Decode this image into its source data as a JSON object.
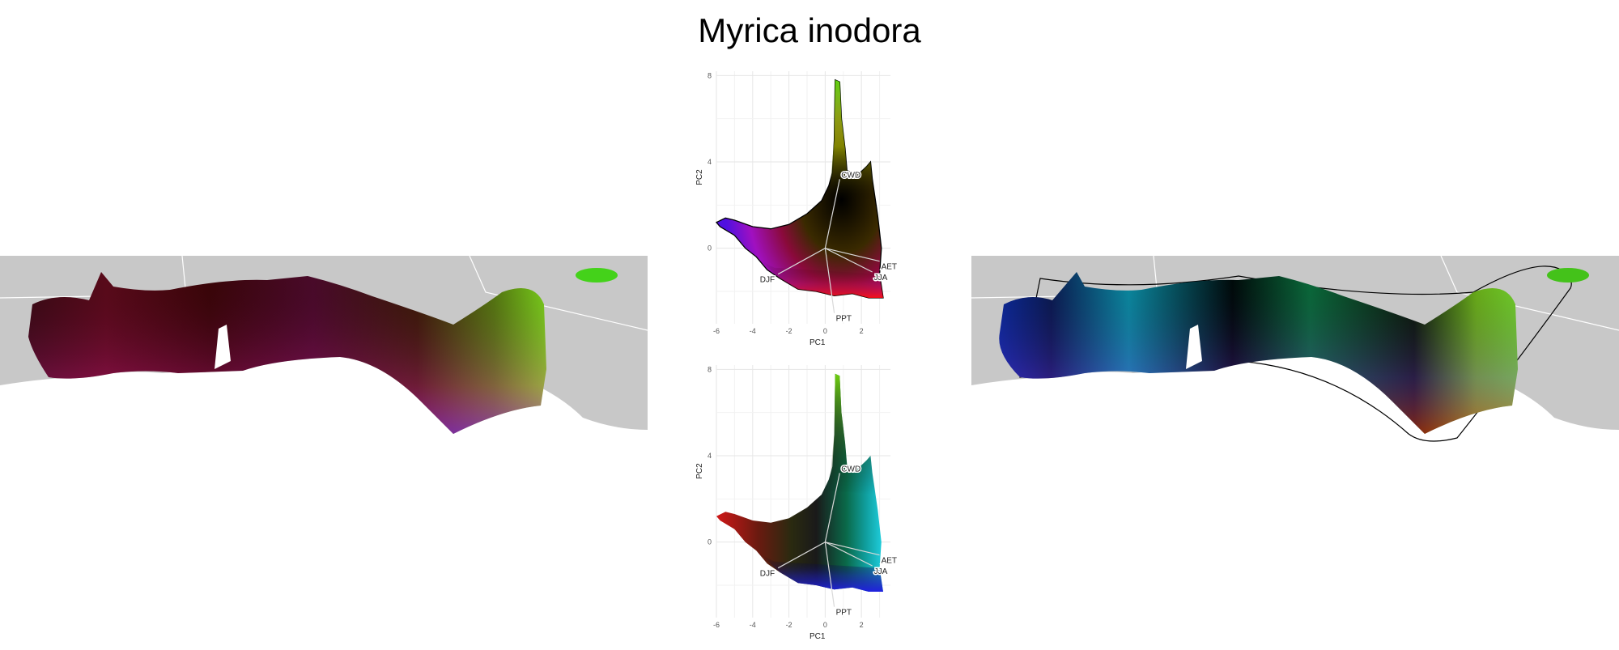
{
  "title": "Myrica inodora",
  "colors": {
    "land": "#c8c8c8",
    "border": "#ffffff",
    "grid": "#e6e6e6",
    "vector": "#d9d9d9",
    "outline": "#000000"
  },
  "chart_data": [
    {
      "type": "scatter",
      "panel": "pca-top",
      "xlabel": "PC1",
      "ylabel": "PC2",
      "xticks": [
        -6,
        -4,
        -2,
        0,
        2
      ],
      "yticks": [
        0,
        4,
        8
      ],
      "xlim": [
        -6,
        3.6
      ],
      "ylim": [
        -3.5,
        8.2
      ],
      "vectors": [
        {
          "label": "CWD",
          "x": 0.8,
          "y": 3.2
        },
        {
          "label": "AET",
          "x": 3.0,
          "y": -0.6
        },
        {
          "label": "JJA",
          "x": 2.6,
          "y": -1.1
        },
        {
          "label": "DJF",
          "x": -2.6,
          "y": -1.2
        },
        {
          "label": "PPT",
          "x": 0.5,
          "y": -3.0
        }
      ]
    },
    {
      "type": "scatter",
      "panel": "pca-bottom",
      "xlabel": "PC1",
      "ylabel": "PC2",
      "xticks": [
        -6,
        -4,
        -2,
        0,
        2
      ],
      "yticks": [
        0,
        4,
        8
      ],
      "xlim": [
        -6,
        3.6
      ],
      "ylim": [
        -3.5,
        8.2
      ],
      "vectors": [
        {
          "label": "CWD",
          "x": 0.8,
          "y": 3.2
        },
        {
          "label": "AET",
          "x": 3.0,
          "y": -0.6
        },
        {
          "label": "JJA",
          "x": 2.6,
          "y": -1.1
        },
        {
          "label": "DJF",
          "x": -2.6,
          "y": -1.2
        },
        {
          "label": "PPT",
          "x": 0.5,
          "y": -3.0
        }
      ]
    }
  ]
}
